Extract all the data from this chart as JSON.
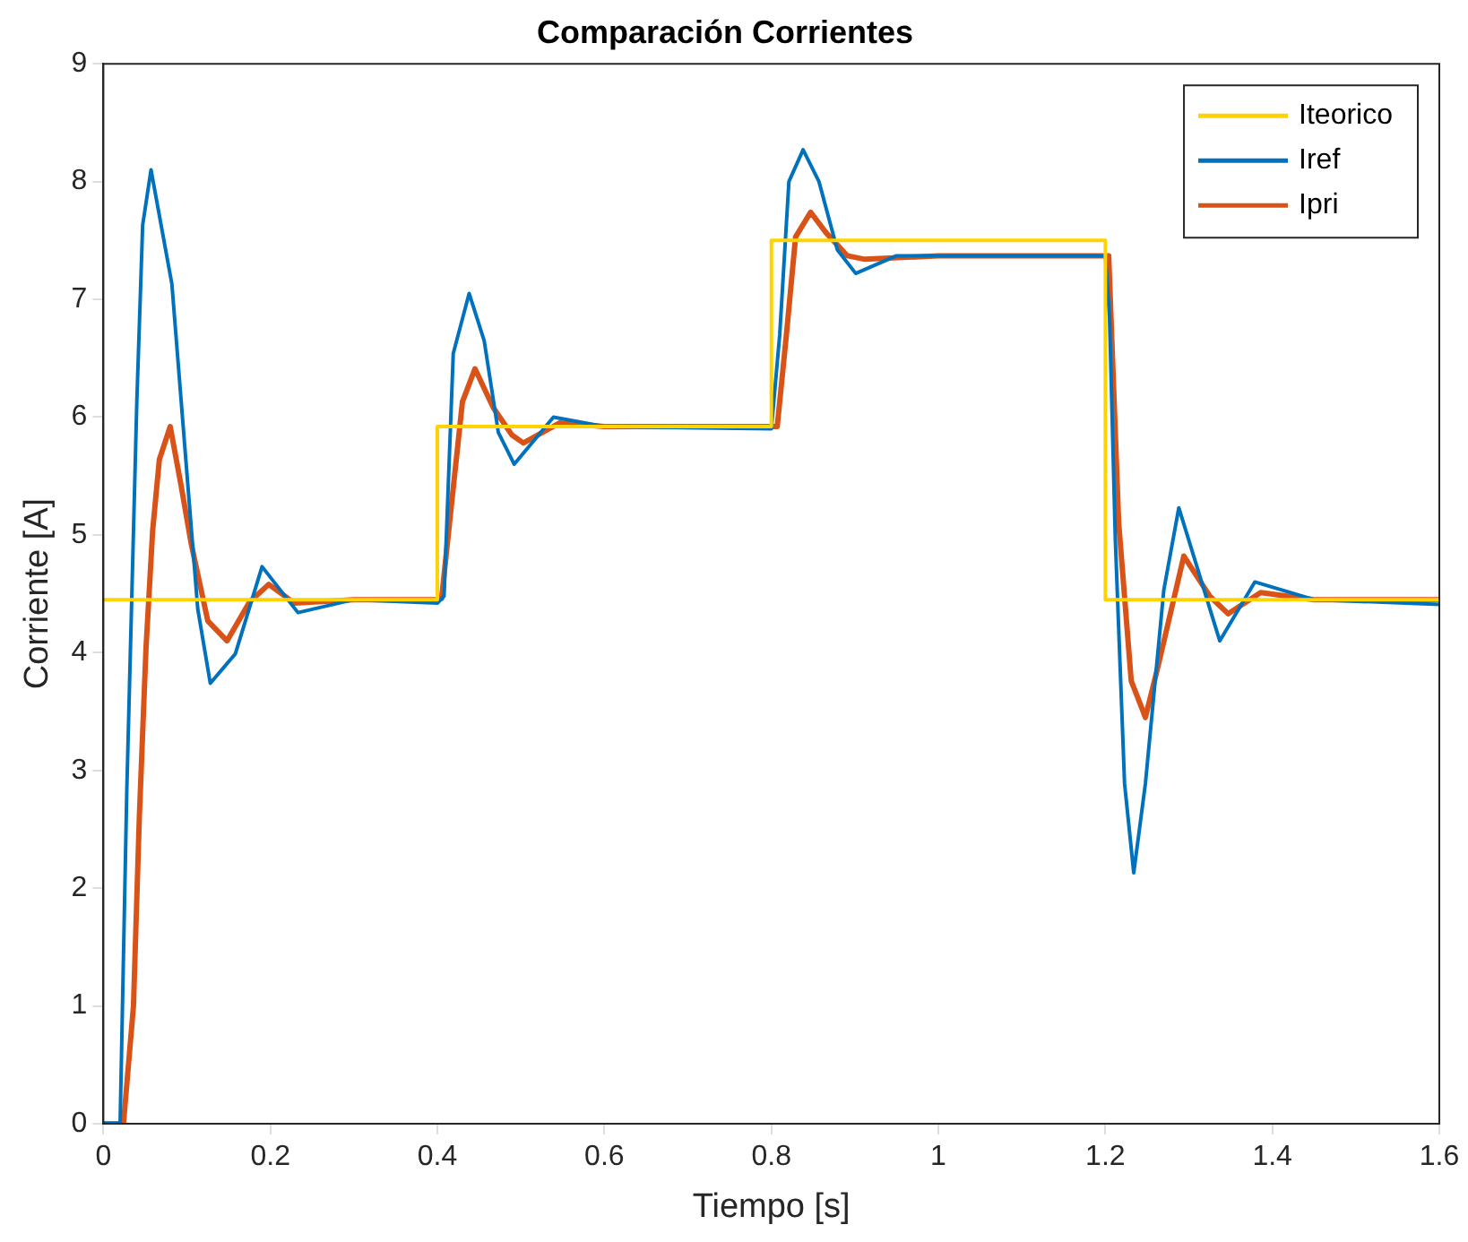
{
  "chart_data": {
    "type": "line",
    "title": "Comparación Corrientes",
    "xlabel": "Tiempo [s]",
    "ylabel": "Corriente [A]",
    "xlim": [
      0,
      1.6
    ],
    "xticks": [
      0,
      0.2,
      0.4,
      0.6,
      0.8,
      1,
      1.2,
      1.4,
      1.6
    ],
    "ylim": [
      0,
      9
    ],
    "yticks": [
      0,
      1,
      2,
      3,
      4,
      5,
      6,
      7,
      8,
      9
    ],
    "legend": "top right",
    "grid": false,
    "marker": "none",
    "line_style": "solid",
    "series": [
      {
        "name": "Iteorico",
        "type": "step",
        "color": "#ffd300",
        "x": [
          0,
          0.4,
          0.8,
          1.2,
          1.6
        ],
        "values": [
          4.45,
          5.92,
          7.5,
          4.45,
          4.45
        ]
      },
      {
        "name": "Iref",
        "color": "#0072bd",
        "x": [
          0,
          0.02,
          0.028,
          0.04,
          0.047,
          0.057,
          0.082,
          0.098,
          0.113,
          0.128,
          0.158,
          0.19,
          0.233,
          0.3,
          0.4,
          0.408,
          0.419,
          0.438,
          0.456,
          0.473,
          0.492,
          0.539,
          0.6,
          0.8,
          0.81,
          0.821,
          0.838,
          0.857,
          0.879,
          0.901,
          0.95,
          1.2,
          1.205,
          1.212,
          1.223,
          1.234,
          1.248,
          1.27,
          1.288,
          1.337,
          1.379,
          1.45,
          1.6
        ],
        "values": [
          0,
          0,
          2.83,
          6.13,
          7.63,
          8.1,
          7.13,
          5.7,
          4.37,
          3.74,
          3.99,
          4.73,
          4.34,
          4.45,
          4.42,
          4.48,
          6.54,
          7.05,
          6.65,
          5.87,
          5.6,
          6.0,
          5.92,
          5.9,
          6.7,
          8.0,
          8.27,
          8.0,
          7.42,
          7.22,
          7.37,
          7.37,
          6.85,
          4.95,
          2.89,
          2.13,
          2.89,
          4.53,
          5.23,
          4.1,
          4.6,
          4.45,
          4.41
        ]
      },
      {
        "name": "Ipri",
        "color": "#d95319",
        "x": [
          0,
          0.024,
          0.036,
          0.043,
          0.051,
          0.059,
          0.067,
          0.08,
          0.093,
          0.105,
          0.125,
          0.148,
          0.175,
          0.198,
          0.229,
          0.3,
          0.4,
          0.405,
          0.416,
          0.43,
          0.445,
          0.467,
          0.489,
          0.503,
          0.546,
          0.6,
          0.8,
          0.807,
          0.818,
          0.829,
          0.847,
          0.865,
          0.891,
          0.912,
          1.0,
          1.2,
          1.204,
          1.216,
          1.231,
          1.248,
          1.264,
          1.294,
          1.325,
          1.347,
          1.386,
          1.45,
          1.6
        ],
        "values": [
          0,
          0,
          1.0,
          2.6,
          4.04,
          5.04,
          5.64,
          5.92,
          5.42,
          4.93,
          4.27,
          4.1,
          4.43,
          4.58,
          4.42,
          4.45,
          4.45,
          4.46,
          5.2,
          6.13,
          6.41,
          6.08,
          5.85,
          5.78,
          5.95,
          5.92,
          5.92,
          5.92,
          6.7,
          7.53,
          7.74,
          7.57,
          7.37,
          7.34,
          7.37,
          7.37,
          7.37,
          5.1,
          3.76,
          3.45,
          3.91,
          4.82,
          4.48,
          4.33,
          4.51,
          4.45,
          4.45
        ]
      }
    ]
  }
}
